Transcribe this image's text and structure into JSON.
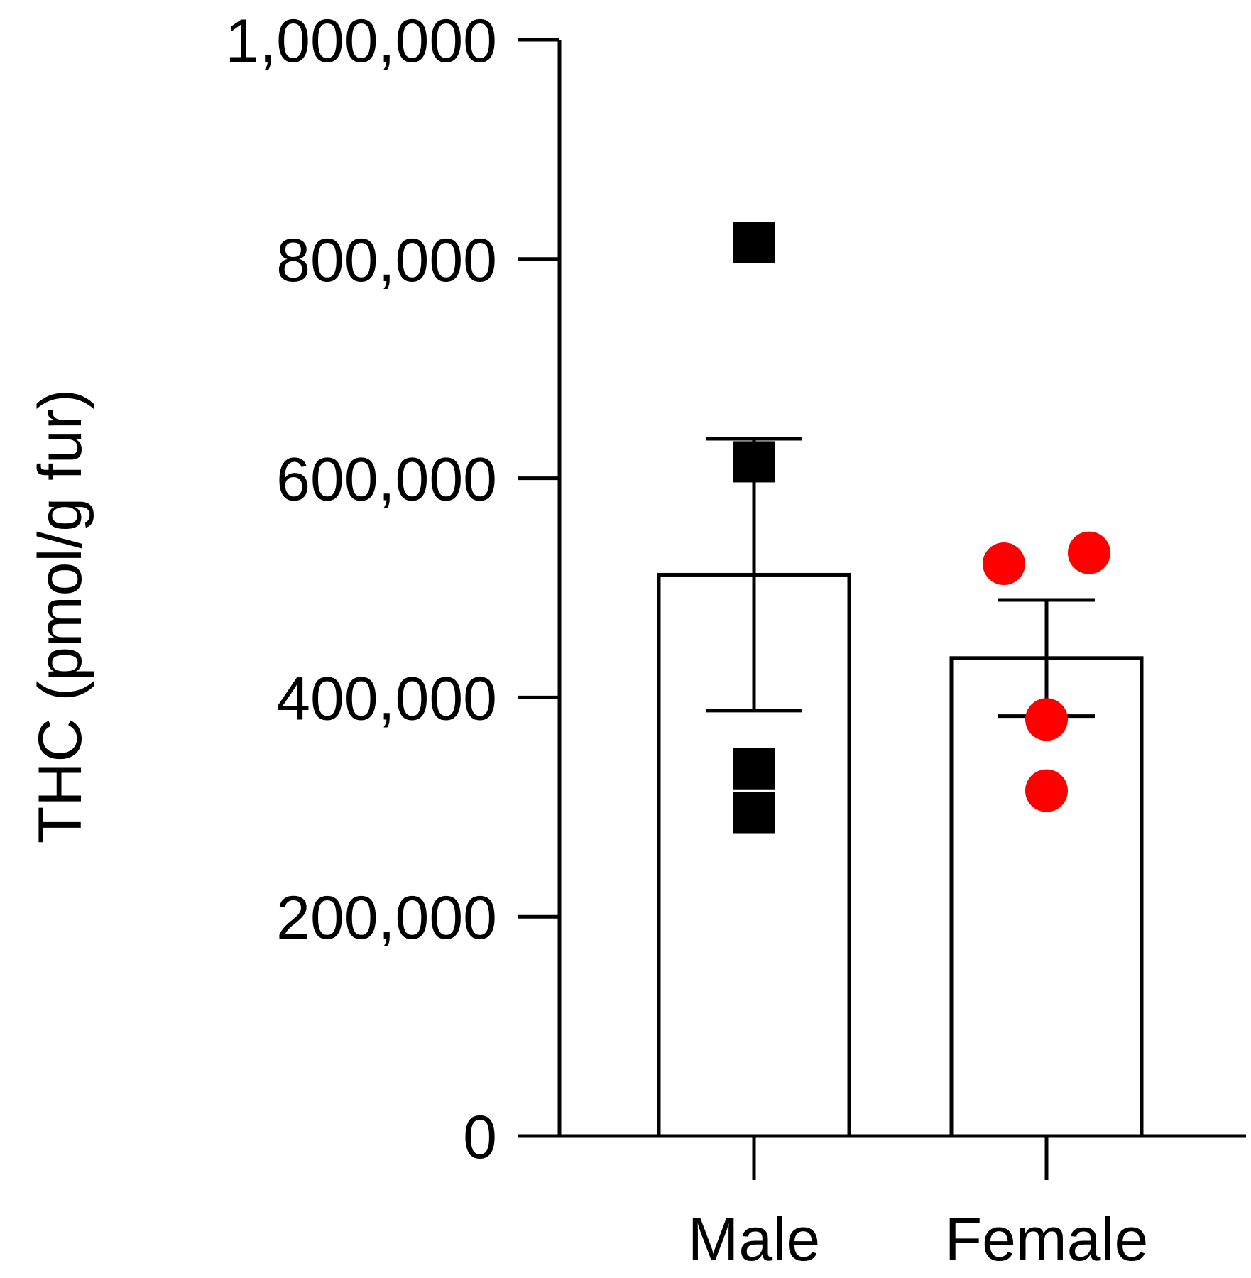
{
  "chart_data": {
    "type": "bar",
    "ylabel": "THC (pmol/g fur)",
    "ylim": [
      0,
      1000000
    ],
    "yticks": [
      0,
      200000,
      400000,
      600000,
      800000,
      1000000
    ],
    "ytick_labels": [
      "0",
      "200,000",
      "400,000",
      "600,000",
      "800,000",
      "1,000,000"
    ],
    "grid": false,
    "categories": [
      "Male",
      "Female"
    ],
    "series": [
      {
        "values": [
          512000,
          436000
        ],
        "error": [
          124000,
          53000
        ],
        "points": [
          [
            815000,
            615000,
            335000,
            295000
          ],
          [
            522000,
            532000,
            380000,
            315000
          ]
        ],
        "marker": [
          "square",
          "circle"
        ],
        "point_colors": [
          "#000000",
          "#ff0000"
        ]
      }
    ]
  }
}
